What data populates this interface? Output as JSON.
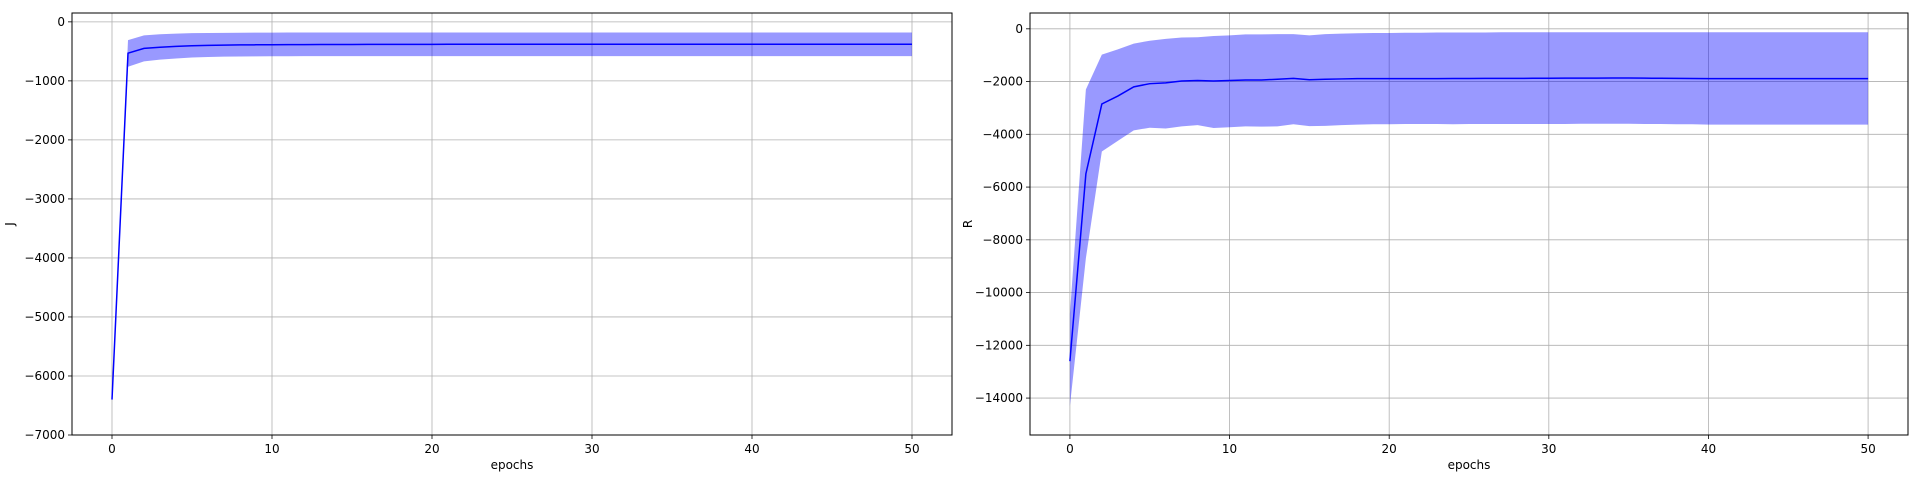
{
  "chart_data": [
    {
      "type": "line",
      "title": "",
      "xlabel": "epochs",
      "ylabel": "J",
      "xlim": [
        -2.5,
        52.5
      ],
      "ylim": [
        -7000,
        150
      ],
      "xticks": [
        0,
        10,
        20,
        30,
        40,
        50
      ],
      "yticks": [
        0,
        -1000,
        -2000,
        -3000,
        -4000,
        -5000,
        -6000,
        -7000
      ],
      "ytick_labels": [
        "0",
        "−1000",
        "−2000",
        "−3000",
        "−4000",
        "−5000",
        "−6000",
        "−7000"
      ],
      "grid": true,
      "x": [
        0,
        1,
        2,
        3,
        4,
        5,
        6,
        7,
        8,
        9,
        10,
        11,
        12,
        13,
        14,
        15,
        16,
        17,
        18,
        19,
        20,
        21,
        22,
        23,
        24,
        25,
        26,
        27,
        28,
        29,
        30,
        31,
        32,
        33,
        34,
        35,
        36,
        37,
        38,
        39,
        40,
        41,
        42,
        43,
        44,
        45,
        46,
        47,
        48,
        49,
        50
      ],
      "series": [
        {
          "name": "mean",
          "color": "#0000ff",
          "values": [
            -6400,
            -530,
            -450,
            -430,
            -415,
            -405,
            -398,
            -394,
            -391,
            -389,
            -387,
            -386,
            -385,
            -384,
            -383,
            -383,
            -382,
            -382,
            -381,
            -381,
            -381,
            -380,
            -380,
            -380,
            -380,
            -380,
            -380,
            -380,
            -380,
            -380,
            -380,
            -380,
            -380,
            -380,
            -380,
            -380,
            -380,
            -380,
            -380,
            -380,
            -380,
            -380,
            -380,
            -380,
            -380,
            -380,
            -380,
            -380,
            -380,
            -380,
            -380
          ]
        }
      ],
      "band": {
        "color": "#0000ff",
        "upper": [
          -6400,
          -310,
          -230,
          -210,
          -200,
          -192,
          -188,
          -186,
          -184,
          -183,
          -182,
          -181,
          -180,
          -180,
          -180,
          -180,
          -180,
          -180,
          -180,
          -180,
          -180,
          -180,
          -180,
          -180,
          -180,
          -180,
          -180,
          -180,
          -180,
          -180,
          -180,
          -180,
          -180,
          -180,
          -180,
          -180,
          -180,
          -180,
          -180,
          -180,
          -180,
          -180,
          -180,
          -180,
          -180,
          -180,
          -180,
          -180,
          -180,
          -180,
          -180
        ],
        "lower": [
          -6400,
          -760,
          -670,
          -640,
          -620,
          -605,
          -595,
          -590,
          -587,
          -585,
          -583,
          -582,
          -581,
          -580,
          -580,
          -580,
          -580,
          -580,
          -580,
          -580,
          -580,
          -580,
          -580,
          -580,
          -580,
          -580,
          -580,
          -580,
          -580,
          -580,
          -580,
          -580,
          -580,
          -580,
          -580,
          -580,
          -580,
          -580,
          -580,
          -580,
          -580,
          -580,
          -580,
          -580,
          -580,
          -580,
          -580,
          -580,
          -580,
          -580,
          -580
        ]
      }
    },
    {
      "type": "line",
      "title": "",
      "xlabel": "epochs",
      "ylabel": "R",
      "xlim": [
        -2.5,
        52.5
      ],
      "ylim": [
        -15400,
        600
      ],
      "xticks": [
        0,
        10,
        20,
        30,
        40,
        50
      ],
      "yticks": [
        0,
        -2000,
        -4000,
        -6000,
        -8000,
        -10000,
        -12000,
        -14000
      ],
      "ytick_labels": [
        "0",
        "−2000",
        "−4000",
        "−6000",
        "−8000",
        "−10000",
        "−12000",
        "−14000"
      ],
      "grid": true,
      "x": [
        0,
        1,
        2,
        3,
        4,
        5,
        6,
        7,
        8,
        9,
        10,
        11,
        12,
        13,
        14,
        15,
        16,
        17,
        18,
        19,
        20,
        21,
        22,
        23,
        24,
        25,
        26,
        27,
        28,
        29,
        30,
        31,
        32,
        33,
        34,
        35,
        36,
        37,
        38,
        39,
        40,
        41,
        42,
        43,
        44,
        45,
        46,
        47,
        48,
        49,
        50
      ],
      "series": [
        {
          "name": "mean",
          "color": "#0000ff",
          "values": [
            -12600,
            -5500,
            -2850,
            -2550,
            -2200,
            -2080,
            -2050,
            -1980,
            -1960,
            -1980,
            -1960,
            -1940,
            -1940,
            -1910,
            -1880,
            -1930,
            -1910,
            -1900,
            -1890,
            -1890,
            -1890,
            -1890,
            -1890,
            -1890,
            -1885,
            -1885,
            -1880,
            -1880,
            -1880,
            -1875,
            -1875,
            -1870,
            -1870,
            -1870,
            -1865,
            -1865,
            -1870,
            -1875,
            -1880,
            -1885,
            -1890,
            -1890,
            -1890,
            -1890,
            -1890,
            -1890,
            -1890,
            -1890,
            -1890,
            -1890,
            -1890
          ]
        }
      ],
      "band": {
        "color": "#0000ff",
        "upper": [
          -10800,
          -2300,
          -980,
          -780,
          -560,
          -450,
          -380,
          -330,
          -320,
          -270,
          -250,
          -210,
          -210,
          -200,
          -200,
          -250,
          -200,
          -180,
          -170,
          -160,
          -160,
          -150,
          -150,
          -140,
          -140,
          -140,
          -140,
          -130,
          -130,
          -130,
          -130,
          -130,
          -130,
          -130,
          -130,
          -130,
          -130,
          -130,
          -130,
          -130,
          -130,
          -130,
          -130,
          -130,
          -130,
          -130,
          -130,
          -130,
          -130,
          -130,
          -130
        ],
        "lower": [
          -14300,
          -8700,
          -4650,
          -4250,
          -3850,
          -3750,
          -3780,
          -3700,
          -3650,
          -3760,
          -3730,
          -3700,
          -3710,
          -3700,
          -3620,
          -3690,
          -3680,
          -3650,
          -3630,
          -3620,
          -3620,
          -3610,
          -3610,
          -3610,
          -3620,
          -3610,
          -3610,
          -3610,
          -3610,
          -3610,
          -3610,
          -3610,
          -3600,
          -3600,
          -3600,
          -3600,
          -3610,
          -3610,
          -3620,
          -3620,
          -3630,
          -3630,
          -3630,
          -3630,
          -3630,
          -3630,
          -3630,
          -3630,
          -3630,
          -3630,
          -3630
        ]
      }
    }
  ]
}
